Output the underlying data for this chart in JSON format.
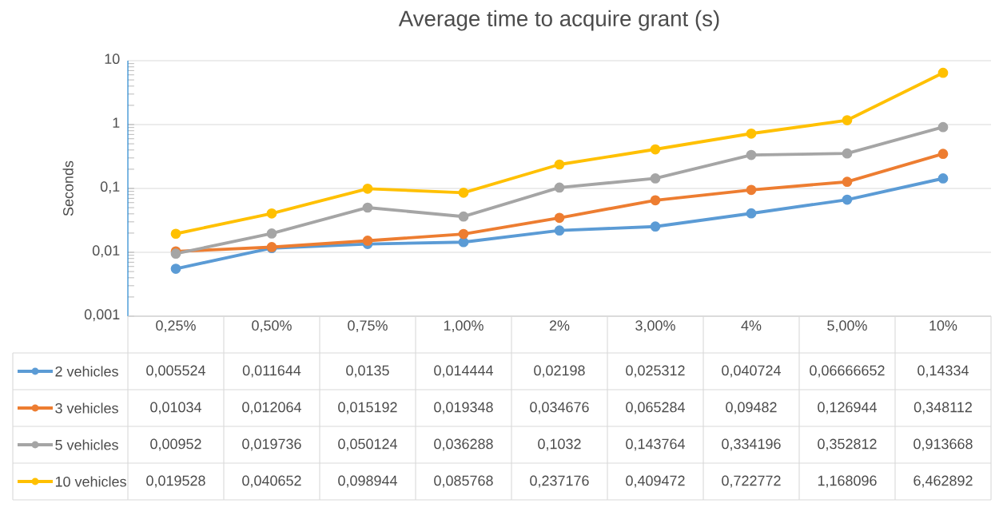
{
  "chart_data": {
    "type": "line",
    "title": "Average time to acquire grant (s)",
    "ylabel": "Seconds",
    "log": "y",
    "grid": "y",
    "legend": "bottom",
    "marker": "circle",
    "line_style": "solid",
    "categories": [
      "0,25%",
      "0,50%",
      "0,75%",
      "1,00%",
      "2%",
      "3,00%",
      "4%",
      "5,00%",
      "10%"
    ],
    "ylim": [
      0.001,
      10
    ],
    "yticks": [
      {
        "value": 0.001,
        "label": "0,001"
      },
      {
        "value": 0.01,
        "label": "0,01"
      },
      {
        "value": 0.1,
        "label": "0,1"
      },
      {
        "value": 1,
        "label": "1"
      },
      {
        "value": 10,
        "label": "10"
      }
    ],
    "series": [
      {
        "name": "2 vehicles",
        "color": "#5b9bd5",
        "values": [
          0.005524,
          0.011644,
          0.0135,
          0.014444,
          0.02198,
          0.025312,
          0.040724,
          0.06666652,
          0.14334
        ],
        "value_labels": [
          "0,005524",
          "0,011644",
          "0,0135",
          "0,014444",
          "0,02198",
          "0,025312",
          "0,040724",
          "0,06666652",
          "0,14334"
        ]
      },
      {
        "name": "3 vehicles",
        "color": "#ed7d31",
        "values": [
          0.01034,
          0.012064,
          0.015192,
          0.019348,
          0.034676,
          0.065284,
          0.09482,
          0.126944,
          0.348112
        ],
        "value_labels": [
          "0,01034",
          "0,012064",
          "0,015192",
          "0,019348",
          "0,034676",
          "0,065284",
          "0,09482",
          "0,126944",
          "0,348112"
        ]
      },
      {
        "name": "5 vehicles",
        "color": "#a5a5a5",
        "values": [
          0.00952,
          0.019736,
          0.050124,
          0.036288,
          0.1032,
          0.143764,
          0.334196,
          0.352812,
          0.913668
        ],
        "value_labels": [
          "0,00952",
          "0,019736",
          "0,050124",
          "0,036288",
          "0,1032",
          "0,143764",
          "0,334196",
          "0,352812",
          "0,913668"
        ]
      },
      {
        "name": "10 vehicles",
        "color": "#ffc000",
        "values": [
          0.019528,
          0.040652,
          0.098944,
          0.085768,
          0.237176,
          0.409472,
          0.722772,
          1.168096,
          6.462892
        ],
        "value_labels": [
          "0,019528",
          "0,040652",
          "0,098944",
          "0,085768",
          "0,237176",
          "0,409472",
          "0,722772",
          "1,168096",
          "6,462892"
        ]
      }
    ]
  }
}
